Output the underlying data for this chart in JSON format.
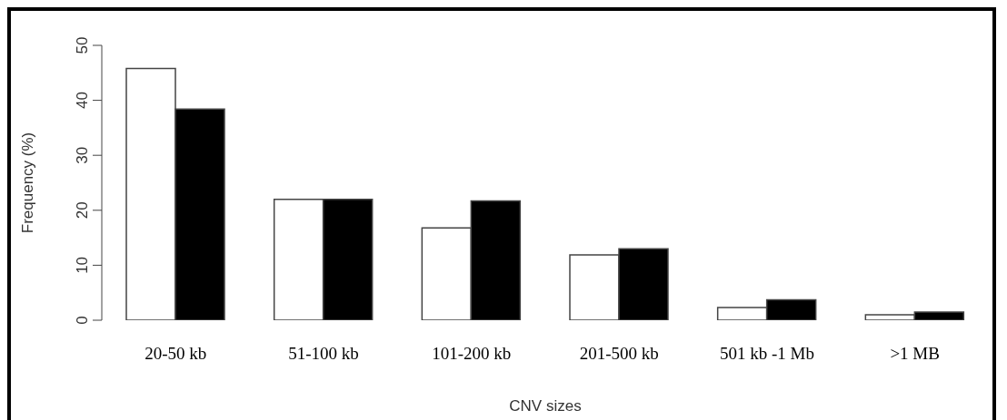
{
  "chart_data": {
    "type": "bar",
    "xlabel": "CNV sizes",
    "ylabel": "Frequency (%)",
    "categories": [
      "20-50 kb",
      "51-100 kb",
      "101-200 kb",
      "201-500 kb",
      "501 kb -1 Mb",
      ">1 MB"
    ],
    "series": [
      {
        "color": "#ffffff",
        "values": [
          45.8,
          22,
          16.8,
          11.9,
          2.3,
          1.0
        ]
      },
      {
        "color": "#000000",
        "values": [
          38.4,
          22,
          21.7,
          13.0,
          3.7,
          1.5
        ]
      }
    ],
    "ylim": [
      0,
      50
    ],
    "yticks": [
      0,
      10,
      20,
      30,
      40,
      50
    ],
    "grid": false,
    "legend": false
  }
}
